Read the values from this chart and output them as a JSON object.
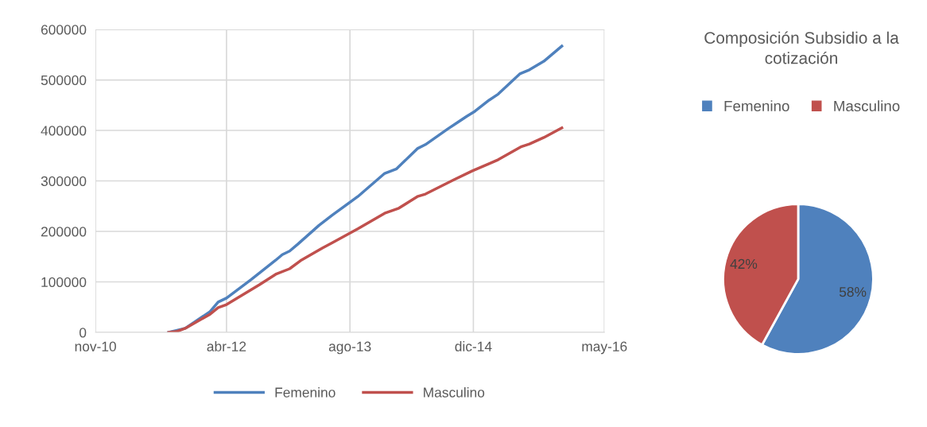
{
  "chart_data": [
    {
      "type": "line",
      "xlim": [
        "2010-11-01",
        "2016-05-01"
      ],
      "xticks": [
        {
          "value": "2010-11-01",
          "label": "nov-10"
        },
        {
          "value": "2012-04-01",
          "label": "abr-12"
        },
        {
          "value": "2013-08-01",
          "label": "ago-13"
        },
        {
          "value": "2014-12-01",
          "label": "dic-14"
        },
        {
          "value": "2016-05-01",
          "label": "may-16"
        }
      ],
      "ylim": [
        0,
        600000
      ],
      "yticks": [
        0,
        100000,
        200000,
        300000,
        400000,
        500000,
        600000
      ],
      "grid": true,
      "legend": "bottom",
      "marker": "none",
      "line_style": "solid",
      "series": [
        {
          "name": "Femenino",
          "color": "#4f81bd",
          "x": [
            "2011-08-17",
            "2011-10-21",
            "2012-01-27",
            "2012-02-28",
            "2012-04-01",
            "2012-07-06",
            "2012-10-12",
            "2012-11-07",
            "2012-12-06",
            "2013-01-08",
            "2013-04-01",
            "2013-05-25",
            "2013-09-01",
            "2013-12-16",
            "2014-02-01",
            "2014-04-24",
            "2014-05-26",
            "2014-08-22",
            "2014-10-03",
            "2014-11-05",
            "2014-12-07",
            "2015-02-01",
            "2015-03-09",
            "2015-06-02",
            "2015-07-10",
            "2015-09-05",
            "2015-11-15"
          ],
          "values": [
            0,
            8000,
            41000,
            60000,
            68000,
            104000,
            143000,
            154000,
            161000,
            175000,
            212000,
            233000,
            269000,
            315000,
            324000,
            364000,
            372000,
            403000,
            417000,
            428000,
            438000,
            460000,
            472000,
            512000,
            520000,
            537000,
            567000
          ]
        },
        {
          "name": "Masculino",
          "color": "#c0504d",
          "x": [
            "2011-08-17",
            "2011-09-19",
            "2011-10-21",
            "2012-01-27",
            "2012-02-28",
            "2012-04-01",
            "2012-08-08",
            "2012-10-12",
            "2012-12-06",
            "2013-01-18",
            "2013-04-14",
            "2013-05-25",
            "2013-09-01",
            "2013-12-16",
            "2014-02-10",
            "2014-04-24",
            "2014-05-26",
            "2014-09-14",
            "2014-11-27",
            "2015-02-01",
            "2015-03-09",
            "2015-06-09",
            "2015-07-10",
            "2015-09-05",
            "2015-11-15"
          ],
          "values": [
            0,
            2000,
            8000,
            36000,
            49000,
            55000,
            94000,
            115000,
            126000,
            142000,
            167000,
            178000,
            205000,
            236000,
            246000,
            269000,
            274000,
            302000,
            320000,
            334000,
            342000,
            368000,
            373000,
            386000,
            405000
          ]
        }
      ]
    },
    {
      "type": "pie",
      "title": "Composición Subsidio a la cotización",
      "legend": "top",
      "categories": [
        "Femenino",
        "Masculino"
      ],
      "values": [
        58,
        42
      ],
      "colors": [
        "#4f81bd",
        "#c0504d"
      ],
      "value_labels": [
        "58%",
        "42%"
      ]
    }
  ]
}
